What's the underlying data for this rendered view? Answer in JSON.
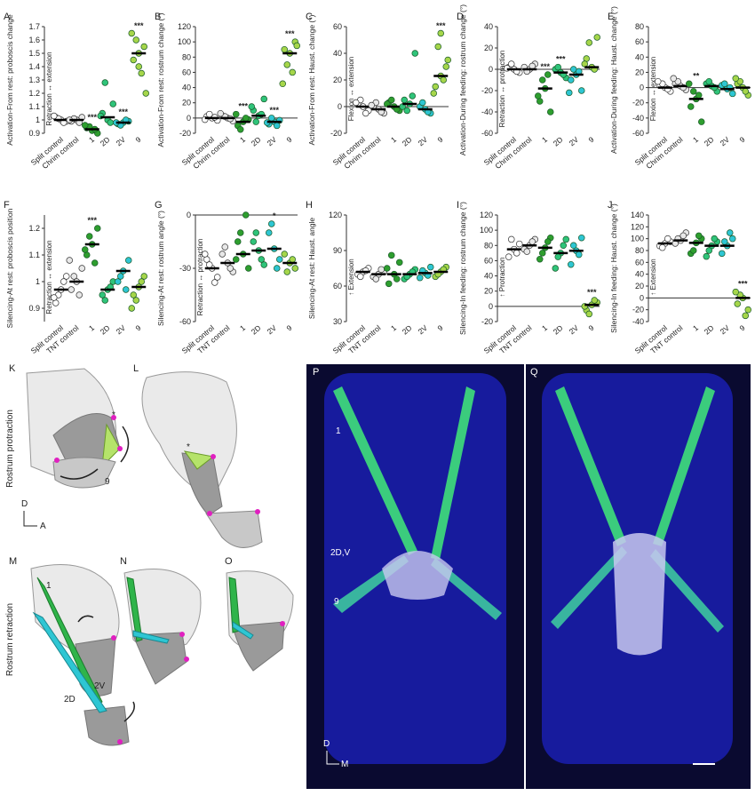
{
  "chart_data": [
    {
      "type": "strip",
      "panel": "A",
      "ylabel": "Activation-From rest: proboscis change",
      "inner_label": "Retraction ↔ extension",
      "categories": [
        "Split control",
        "Chrim control",
        "1",
        "2D",
        "2V",
        "9"
      ],
      "colors": [
        "#ffffff",
        "#e8e8e8",
        "#2e9e2e",
        "#2fc47a",
        "#2ec6d3",
        "#a6d64a"
      ],
      "values": [
        [
          1.0,
          1.02,
          0.99,
          1.01,
          0.98,
          1.03
        ],
        [
          1.0,
          0.99,
          1.02,
          1.01,
          0.98,
          1.0
        ],
        [
          0.92,
          0.94,
          0.9,
          0.95,
          0.93,
          0.96
        ],
        [
          1.0,
          1.05,
          1.12,
          1.28,
          0.98,
          1.03
        ],
        [
          0.98,
          0.97,
          0.99,
          0.96,
          1.0,
          0.98
        ],
        [
          1.5,
          1.45,
          1.55,
          1.6,
          1.35,
          1.65,
          1.2,
          1.4
        ]
      ],
      "medians": [
        1.0,
        1.0,
        0.93,
        1.02,
        0.98,
        1.5
      ],
      "significance": [
        null,
        null,
        "***",
        null,
        "***",
        "***"
      ],
      "ylim": [
        0.9,
        1.7
      ],
      "yticks": [
        0.9,
        1,
        1.1,
        1.2,
        1.3,
        1.4,
        1.5,
        1.6,
        1.7
      ]
    },
    {
      "type": "strip",
      "panel": "B",
      "ylabel": "Activation-From rest: rostrum change (°)",
      "inner_label": null,
      "categories": [
        "Split control",
        "Chrim control",
        "1",
        "2D",
        "2V",
        "9"
      ],
      "colors": [
        "#ffffff",
        "#e8e8e8",
        "#2e9e2e",
        "#2fc47a",
        "#2ec6d3",
        "#a6d64a"
      ],
      "values": [
        [
          0,
          2,
          -3,
          5,
          1,
          -2
        ],
        [
          0,
          3,
          -4,
          2,
          -1,
          6
        ],
        [
          -5,
          -10,
          -2,
          -15,
          0,
          5
        ],
        [
          3,
          10,
          25,
          -5,
          5,
          15
        ],
        [
          -5,
          -8,
          -3,
          0,
          -10,
          -6
        ],
        [
          85,
          90,
          100,
          70,
          60,
          45,
          95
        ]
      ],
      "medians": [
        0,
        0,
        -5,
        3,
        -5,
        85
      ],
      "significance": [
        null,
        null,
        "***",
        null,
        "***",
        "***"
      ],
      "ylim": [
        -20,
        120
      ],
      "yticks": [
        -20,
        0,
        20,
        40,
        60,
        80,
        100,
        120
      ]
    },
    {
      "type": "strip",
      "panel": "C",
      "ylabel": "Activation-From rest: Haust. change (°)",
      "inner_label": "Flexion ↔ extension",
      "categories": [
        "Split control",
        "Chrim control",
        "1",
        "2D",
        "2V",
        "9"
      ],
      "colors": [
        "#ffffff",
        "#e8e8e8",
        "#2e9e2e",
        "#2fc47a",
        "#2ec6d3",
        "#a6d64a"
      ],
      "values": [
        [
          0,
          2,
          -3,
          5,
          -5,
          3
        ],
        [
          -2,
          0,
          -5,
          3,
          -4,
          1
        ],
        [
          0,
          3,
          -3,
          5,
          -2,
          2
        ],
        [
          2,
          5,
          40,
          -3,
          8,
          0
        ],
        [
          -2,
          0,
          -5,
          3,
          -4
        ],
        [
          23,
          15,
          30,
          45,
          20,
          10,
          35,
          55
        ]
      ],
      "medians": [
        0,
        -2,
        0,
        2,
        -2,
        23
      ],
      "significance": [
        null,
        null,
        null,
        null,
        null,
        "***"
      ],
      "ylim": [
        -20,
        60
      ],
      "yticks": [
        -20,
        0,
        20,
        40,
        60
      ]
    },
    {
      "type": "strip",
      "panel": "D",
      "ylabel": "Activation-During feeding: rostrum change (°)",
      "inner_label": "Retraction ↔ protraction",
      "categories": [
        "Split control",
        "Chrim control",
        "1",
        "2D",
        "2V",
        "9"
      ],
      "colors": [
        "#ffffff",
        "#e8e8e8",
        "#2e9e2e",
        "#2fc47a",
        "#2ec6d3",
        "#a6d64a"
      ],
      "values": [
        [
          0,
          2,
          -3,
          5,
          -2,
          1
        ],
        [
          0,
          2,
          5,
          -2,
          3
        ],
        [
          -18,
          -30,
          -40,
          -10,
          -5,
          -25
        ],
        [
          -3,
          0,
          -8,
          2,
          -5
        ],
        [
          -5,
          -10,
          -20,
          0,
          -2,
          -22
        ],
        [
          2,
          10,
          30,
          25,
          0,
          5
        ]
      ],
      "medians": [
        0,
        0,
        -18,
        -3,
        -5,
        2
      ],
      "significance": [
        null,
        null,
        "***",
        "***",
        null,
        null
      ],
      "ylim": [
        -60,
        40
      ],
      "yticks": [
        -60,
        -40,
        -20,
        0,
        20,
        40
      ]
    },
    {
      "type": "strip",
      "panel": "E",
      "ylabel": "Activation-During feeding: Haust. change (°)",
      "inner_label": "Flexion ↔ extension",
      "categories": [
        "Split control",
        "Chrim control",
        "1",
        "2D",
        "2V",
        "9"
      ],
      "colors": [
        "#ffffff",
        "#e8e8e8",
        "#2e9e2e",
        "#2fc47a",
        "#2ec6d3",
        "#a6d64a"
      ],
      "values": [
        [
          0,
          3,
          -5,
          5,
          -2,
          8
        ],
        [
          2,
          5,
          -3,
          8,
          0,
          12
        ],
        [
          -15,
          -25,
          -45,
          -5,
          -10,
          5
        ],
        [
          2,
          5,
          -5,
          8,
          0
        ],
        [
          -2,
          3,
          -8,
          5,
          0
        ],
        [
          0,
          5,
          -10,
          8,
          -5,
          12
        ]
      ],
      "medians": [
        0,
        2,
        -15,
        2,
        -2,
        0
      ],
      "significance": [
        null,
        null,
        "**",
        null,
        null,
        null
      ],
      "ylim": [
        -60,
        80
      ],
      "yticks": [
        -60,
        -40,
        -20,
        0,
        20,
        40,
        60,
        80
      ]
    },
    {
      "type": "strip",
      "panel": "F",
      "ylabel": "Silencing-At rest: proboscis position",
      "inner_label": "Retraction ↔ extension",
      "categories": [
        "Split control",
        "TNT control",
        "1",
        "2D",
        "2V",
        "9"
      ],
      "colors": [
        "#ffffff",
        "#e8e8e8",
        "#2e9e2e",
        "#2fc47a",
        "#2ec6d3",
        "#a6d64a"
      ],
      "values": [
        [
          0.97,
          0.92,
          1.02,
          0.95,
          1.0,
          0.94
        ],
        [
          1.0,
          0.97,
          1.05,
          1.02,
          0.95,
          1.08
        ],
        [
          1.14,
          1.1,
          1.2,
          1.17,
          1.07,
          1.12
        ],
        [
          0.97,
          0.95,
          1.0,
          0.93,
          0.98
        ],
        [
          1.04,
          1.0,
          1.08,
          1.02,
          0.97
        ],
        [
          0.98,
          0.95,
          1.02,
          0.93,
          1.0,
          0.9
        ]
      ],
      "medians": [
        0.97,
        1.0,
        1.14,
        0.97,
        1.04,
        0.98
      ],
      "significance": [
        null,
        null,
        "***",
        null,
        null,
        null
      ],
      "ylim": [
        0.85,
        1.25
      ],
      "yticks": [
        0.9,
        1,
        1.1,
        1.2
      ]
    },
    {
      "type": "strip",
      "panel": "G",
      "ylabel": "Silencing-At rest: rostrum angle (°)",
      "inner_label": "Retraction ↔ protraction",
      "categories": [
        "Split control",
        "TNT control",
        "1",
        "2D",
        "2V",
        "9"
      ],
      "colors": [
        "#ffffff",
        "#e8e8e8",
        "#2e9e2e",
        "#2fc47a",
        "#2ec6d3",
        "#a6d64a"
      ],
      "values": [
        [
          -30,
          -25,
          -35,
          -28,
          -38,
          -22
        ],
        [
          -27,
          -22,
          -32,
          -18,
          -30
        ],
        [
          -22,
          -15,
          -30,
          -10,
          0,
          -25
        ],
        [
          -20,
          -15,
          -28,
          -10,
          -25
        ],
        [
          -19,
          -10,
          -25,
          -5,
          -30
        ],
        [
          -27,
          -22,
          -30,
          -32,
          -25
        ]
      ],
      "medians": [
        -30,
        -27,
        -22,
        -20,
        -19,
        -27
      ],
      "significance": [
        null,
        null,
        null,
        null,
        "*",
        null
      ],
      "ylim": [
        -60,
        0
      ],
      "yticks": [
        -60,
        -30,
        0
      ]
    },
    {
      "type": "strip",
      "panel": "H",
      "ylabel": "Silencing-At rest: Haust. angle",
      "inner_label": "↑ Extension",
      "categories": [
        "Split control",
        "TNT control",
        "1",
        "2D",
        "2V",
        "9"
      ],
      "colors": [
        "#ffffff",
        "#e8e8e8",
        "#2e9e2e",
        "#2fc47a",
        "#2ec6d3",
        "#a6d64a"
      ],
      "values": [
        [
          72,
          70,
          75,
          68,
          73
        ],
        [
          70,
          68,
          72,
          66,
          74
        ],
        [
          70,
          62,
          80,
          86,
          66,
          75
        ],
        [
          70,
          66,
          74,
          68,
          72
        ],
        [
          71,
          67,
          76,
          73,
          69
        ],
        [
          72,
          68,
          76,
          70,
          74
        ]
      ],
      "medians": [
        72,
        70,
        70,
        70,
        71,
        72
      ],
      "significance": [
        null,
        null,
        null,
        null,
        null,
        null
      ],
      "ylim": [
        30,
        120
      ],
      "yticks": [
        30,
        60,
        90,
        120
      ]
    },
    {
      "type": "strip",
      "panel": "I",
      "ylabel": "Silencing-In feeding: rostrum change (°)",
      "inner_label": "↑ Protraction",
      "categories": [
        "Split control",
        "TNT control",
        "1",
        "2D",
        "2V",
        "9"
      ],
      "colors": [
        "#ffffff",
        "#e8e8e8",
        "#2e9e2e",
        "#2fc47a",
        "#2ec6d3",
        "#a6d64a"
      ],
      "values": [
        [
          75,
          65,
          82,
          88,
          70
        ],
        [
          80,
          75,
          88,
          72,
          85
        ],
        [
          77,
          62,
          90,
          70,
          85
        ],
        [
          70,
          50,
          88,
          65,
          80
        ],
        [
          73,
          55,
          90,
          80,
          68
        ],
        [
          2,
          -5,
          5,
          -10,
          8,
          0
        ]
      ],
      "medians": [
        75,
        80,
        77,
        70,
        73,
        2
      ],
      "significance": [
        null,
        null,
        null,
        null,
        null,
        "***"
      ],
      "ylim": [
        -20,
        120
      ],
      "yticks": [
        -20,
        0,
        20,
        40,
        60,
        80,
        100,
        120
      ]
    },
    {
      "type": "strip",
      "panel": "J",
      "ylabel": "Silencing-In feeding: Haust. change (°)",
      "inner_label": "↑ Extension",
      "categories": [
        "Split control",
        "TNT control",
        "1",
        "2D",
        "2V",
        "9"
      ],
      "colors": [
        "#ffffff",
        "#e8e8e8",
        "#2e9e2e",
        "#2fc47a",
        "#2ec6d3",
        "#a6d64a"
      ],
      "values": [
        [
          92,
          88,
          95,
          85,
          100
        ],
        [
          97,
          92,
          110,
          100,
          105
        ],
        [
          93,
          75,
          100,
          80,
          105
        ],
        [
          88,
          70,
          95,
          80,
          100
        ],
        [
          88,
          75,
          100,
          95,
          110
        ],
        [
          0,
          -10,
          -20,
          5,
          -30,
          10
        ]
      ],
      "medians": [
        92,
        97,
        93,
        88,
        88,
        0
      ],
      "significance": [
        null,
        null,
        null,
        null,
        null,
        "***"
      ],
      "ylim": [
        -40,
        140
      ],
      "yticks": [
        -40,
        -20,
        0,
        20,
        40,
        60,
        80,
        100,
        120,
        140
      ]
    }
  ],
  "diagrams": {
    "K": {
      "letter": "K",
      "side_label": "Rostrum protraction",
      "asterisk": "*",
      "muscle": "9",
      "axis_v": "D",
      "axis_h": "A"
    },
    "L": {
      "letter": "L",
      "asterisk": "*"
    },
    "M": {
      "letter": "M",
      "side_label": "Rostrum retraction",
      "muscle_1": "1",
      "muscle_2d": "2D",
      "muscle_2v": "2V"
    },
    "N": {
      "letter": "N"
    },
    "O": {
      "letter": "O"
    },
    "P": {
      "letter": "P",
      "muscle_1": "1",
      "muscle_2dv": "2D,V",
      "muscle_9": "9",
      "axis_v": "D",
      "axis_h": "M"
    },
    "Q": {
      "letter": "Q"
    }
  }
}
